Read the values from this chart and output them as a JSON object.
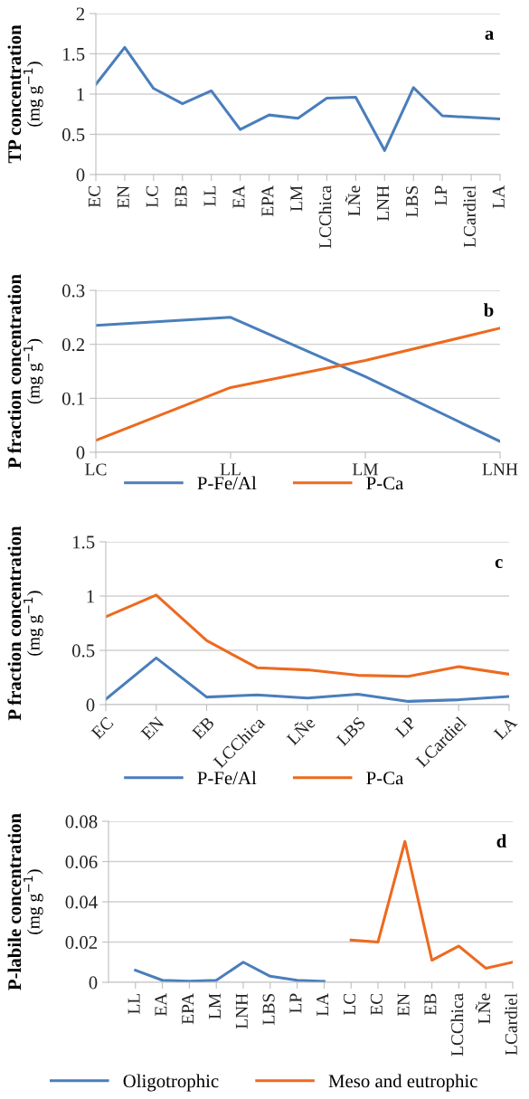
{
  "chart_data": [
    {
      "type": "line",
      "ylabel": "TP concentration\n(mg g$^{−1}$)",
      "categories": [
        "EC",
        "EN",
        "LC",
        "EB",
        "LL",
        "EA",
        "EPA",
        "LM",
        "LCChica",
        "LÑe",
        "LNH",
        "LBS",
        "LP",
        "LCardiel",
        "LA"
      ],
      "series": [
        {
          "color": "#4a7ebb",
          "values": [
            1.12,
            1.58,
            1.07,
            0.88,
            1.04,
            0.56,
            0.74,
            0.7,
            0.95,
            0.96,
            0.3,
            1.08,
            0.73,
            0.71,
            0.69
          ]
        }
      ],
      "ylim": [
        0,
        2
      ],
      "yticks": [
        0,
        0.5,
        1,
        1.5,
        2
      ],
      "grid": "y",
      "legend": false,
      "marker": "none",
      "annotations": [
        "a"
      ]
    },
    {
      "type": "line",
      "ylabel": "P fraction concentration\n(mg g$^{−1}$)",
      "categories": [
        "LC",
        "LL",
        "LM",
        "LNH"
      ],
      "series": [
        {
          "name": "P-Fe/Al",
          "color": "#4a7ebb",
          "values": [
            0.235,
            0.25,
            0.14,
            0.02
          ]
        },
        {
          "name": "P-Ca",
          "color": "#ed6a1f",
          "values": [
            0.022,
            0.12,
            0.17,
            0.23
          ]
        }
      ],
      "ylim": [
        0,
        0.3
      ],
      "yticks": [
        0,
        0.1,
        0.2,
        0.3
      ],
      "grid": "y",
      "legend": "bottom",
      "marker": "none",
      "annotations": [
        "b"
      ]
    },
    {
      "type": "line",
      "ylabel": "P fraction concentration\n(mg g$^{−1}$)",
      "categories": [
        "EC",
        "EN",
        "EB",
        "LCChica",
        "LÑe",
        "LBS",
        "LP",
        "LCardiel",
        "LA"
      ],
      "series": [
        {
          "name": "P-Fe/Al",
          "color": "#4a7ebb",
          "values": [
            0.05,
            0.43,
            0.07,
            0.09,
            0.06,
            0.095,
            0.03,
            0.045,
            0.075
          ]
        },
        {
          "name": "P-Ca",
          "color": "#ed6a1f",
          "values": [
            0.81,
            1.01,
            0.59,
            0.34,
            0.32,
            0.27,
            0.26,
            0.35,
            0.28
          ]
        }
      ],
      "ylim": [
        0,
        1.5
      ],
      "yticks": [
        0,
        0.5,
        1,
        1.5
      ],
      "grid": "y",
      "legend": "bottom",
      "marker": "none",
      "annotations": [
        "c"
      ]
    },
    {
      "type": "line",
      "ylabel": "P-labile concentration\n(mg g$^{−1}$)",
      "categories": [
        "LL",
        "EA",
        "EPA",
        "LM",
        "LNH",
        "LBS",
        "LP",
        "LA",
        "LC",
        "EC",
        "EN",
        "EB",
        "LCChica",
        "LÑe",
        "LCardiel"
      ],
      "series": [
        {
          "name": "Oligotrophic",
          "color": "#4a7ebb",
          "values": [
            0.006,
            0.001,
            0.0005,
            0.001,
            0.01,
            0.003,
            0.001,
            0.0005,
            null,
            null,
            null,
            null,
            null,
            null,
            null
          ]
        },
        {
          "name": "Meso and eutrophic",
          "color": "#ed6a1f",
          "values": [
            null,
            null,
            null,
            null,
            null,
            null,
            null,
            null,
            0.021,
            0.02,
            0.07,
            0.011,
            0.018,
            0.007,
            0.01
          ]
        }
      ],
      "ylim": [
        0,
        0.08
      ],
      "yticks": [
        0,
        0.02,
        0.04,
        0.06,
        0.08
      ],
      "grid": "y",
      "legend": "bottom",
      "marker": "none",
      "annotations": [
        "d"
      ]
    }
  ]
}
